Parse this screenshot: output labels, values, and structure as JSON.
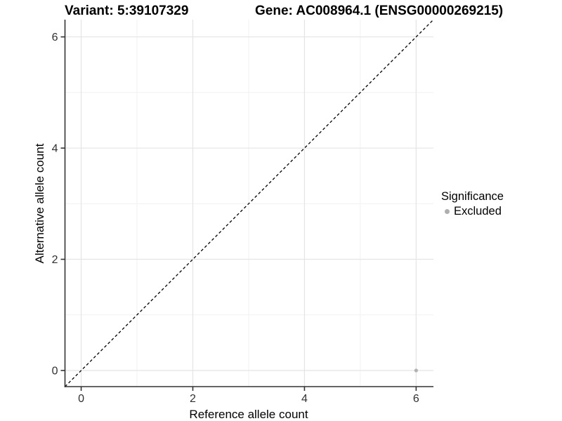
{
  "header": {
    "variant_title": "Variant: 5:39107329",
    "gene_title": "Gene: AC008964.1 (ENSG00000269215)"
  },
  "legend": {
    "title": "Significance",
    "items": [
      {
        "label": "Excluded",
        "color": "#aeaeae"
      }
    ]
  },
  "chart_data": {
    "type": "scatter",
    "xlabel": "Reference allele count",
    "ylabel": "Alternative allele count",
    "xlim": [
      -0.29,
      6.31
    ],
    "ylim": [
      -0.29,
      6.31
    ],
    "xticks": [
      0,
      2,
      4,
      6
    ],
    "yticks": [
      0,
      2,
      4,
      6
    ],
    "xminor": [
      1,
      3,
      5
    ],
    "yminor": [
      1,
      3,
      5
    ],
    "grid": true,
    "legend_position": "right",
    "reference_line": {
      "type": "identity-diagonal",
      "style": "dashed",
      "color": "#000000"
    },
    "series": [
      {
        "name": "Excluded",
        "color": "#b2b2b2",
        "points": [
          {
            "x": 6,
            "y": 0
          }
        ]
      }
    ],
    "colors": {
      "grid_major": "#e4e4e4",
      "grid_minor": "#f1f1f1",
      "axis_line": "#333333",
      "tick_label": "#303030"
    }
  }
}
